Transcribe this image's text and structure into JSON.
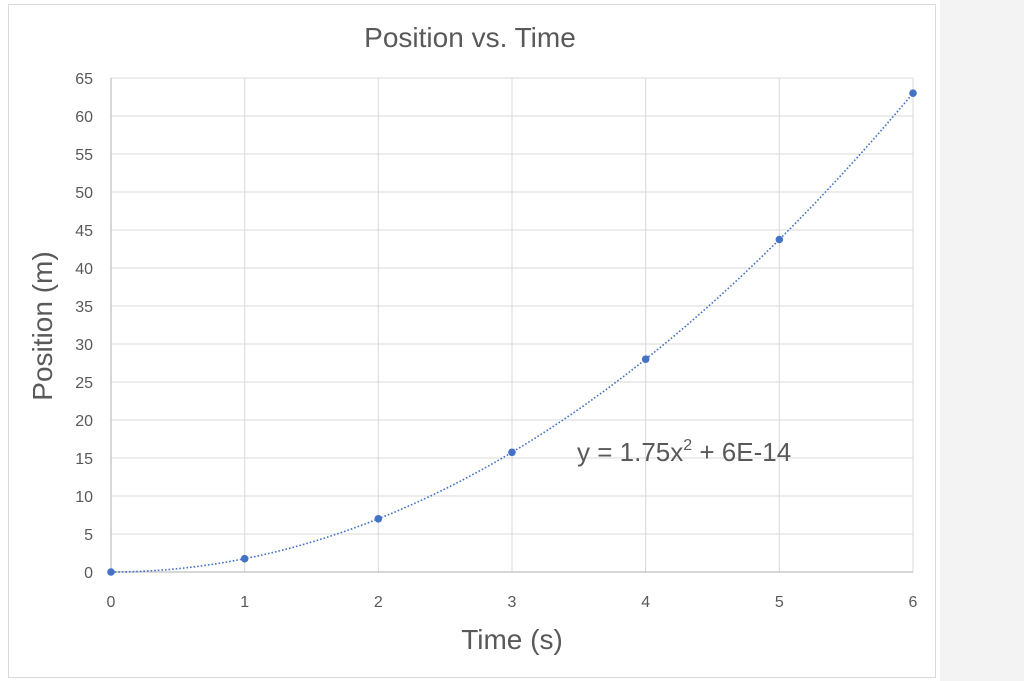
{
  "chart_data": {
    "type": "scatter",
    "title": "Position vs. Time",
    "xlabel": "Time (s)",
    "ylabel": "Position (m)",
    "xlim": [
      0,
      6
    ],
    "ylim": [
      0,
      65
    ],
    "xticks": [
      0,
      1,
      2,
      3,
      4,
      5,
      6
    ],
    "yticks": [
      0,
      5,
      10,
      15,
      20,
      25,
      30,
      35,
      40,
      45,
      50,
      55,
      60,
      65
    ],
    "grid": true,
    "series": [
      {
        "x": [
          0,
          1,
          2,
          3,
          4,
          5,
          6
        ],
        "y": [
          0,
          1.75,
          7,
          15.75,
          28,
          43.75,
          63
        ],
        "color": "#4472c4"
      }
    ],
    "trendline": {
      "type": "polynomial-2",
      "a": 1.75,
      "c": 0,
      "equation_prefix": "y = 1.75x",
      "equation_exponent": "2",
      "equation_suffix": " + 6E-14",
      "color": "#4472c4",
      "style": "dotted"
    }
  }
}
